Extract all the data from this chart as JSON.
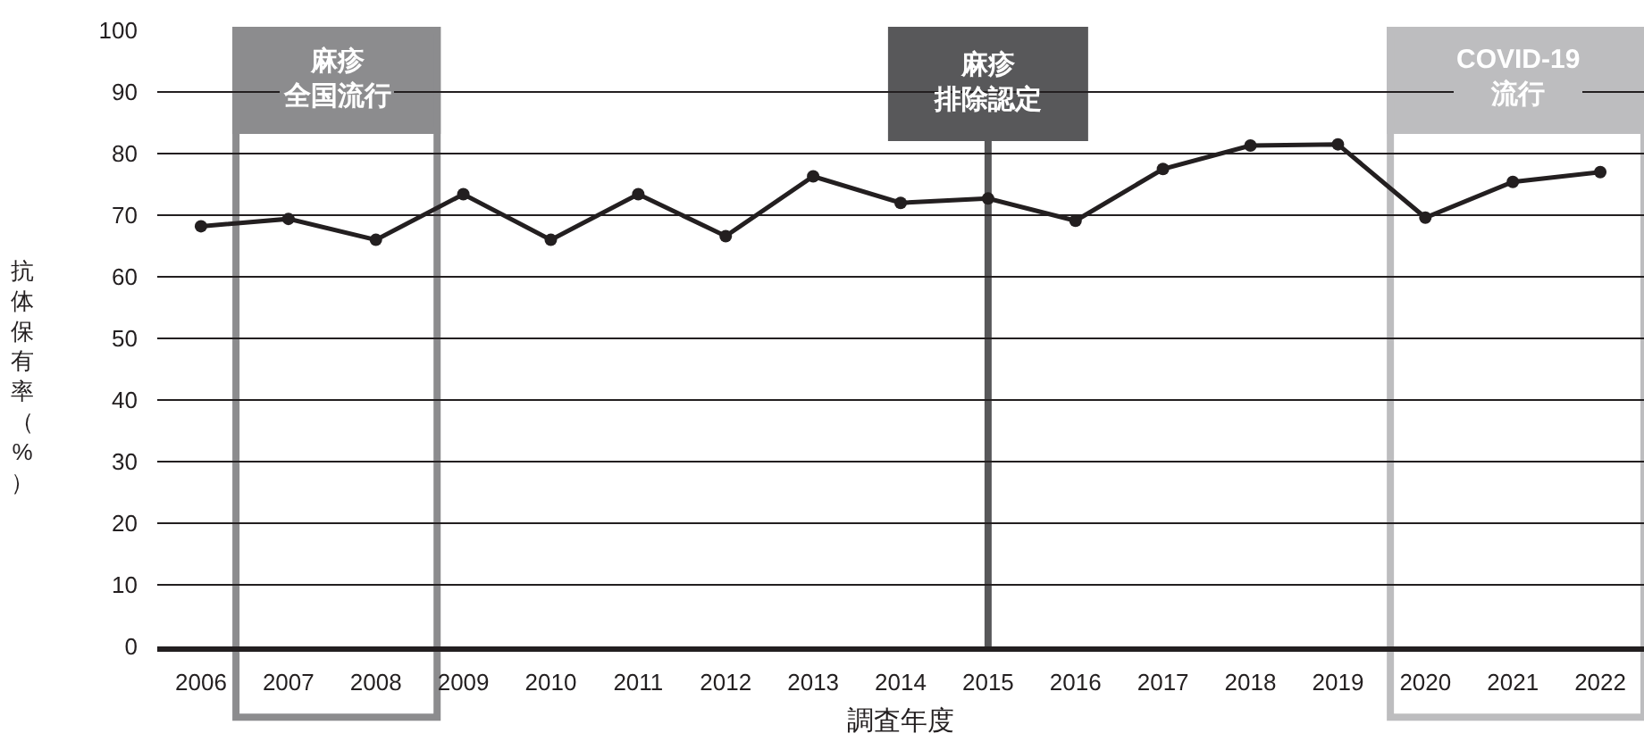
{
  "chart_data": {
    "type": "line",
    "xlabel": "調査年度",
    "ylabel": "抗体保有率（%）",
    "x": [
      2006,
      2007,
      2008,
      2009,
      2010,
      2011,
      2012,
      2013,
      2014,
      2015,
      2016,
      2017,
      2018,
      2019,
      2020,
      2021,
      2022
    ],
    "series": [
      {
        "color": "#231f20",
        "values": [
          68.2,
          69.4,
          66.0,
          73.4,
          66.0,
          73.4,
          66.6,
          76.3,
          72.0,
          72.7,
          69.1,
          77.5,
          81.3,
          81.5,
          69.6,
          75.4,
          77.0
        ]
      }
    ],
    "xlim": [
      2005.5,
      2022.5
    ],
    "xticks": [
      2006,
      2007,
      2008,
      2009,
      2010,
      2011,
      2012,
      2013,
      2014,
      2015,
      2016,
      2017,
      2018,
      2019,
      2020,
      2021,
      2022
    ],
    "ylim": [
      0,
      100
    ],
    "yticks": [
      0,
      10,
      20,
      30,
      40,
      50,
      60,
      70,
      80,
      90,
      100
    ],
    "grid": "y",
    "marker": "circle",
    "line_style": "solid",
    "bands": [
      {
        "axis": "x",
        "from": 2006.4,
        "to": 2008.7,
        "label": "麻疹全国流行",
        "color": "#8c8c8e"
      },
      {
        "axis": "x",
        "from": 2019.6,
        "to": 2022.5,
        "label": "COVID-19\n流行",
        "color": "#bdbdbf"
      }
    ],
    "ref_lines": [
      {
        "axis": "x",
        "value": 2015,
        "label": "麻疹排除認定",
        "color": "#58585a"
      }
    ]
  }
}
